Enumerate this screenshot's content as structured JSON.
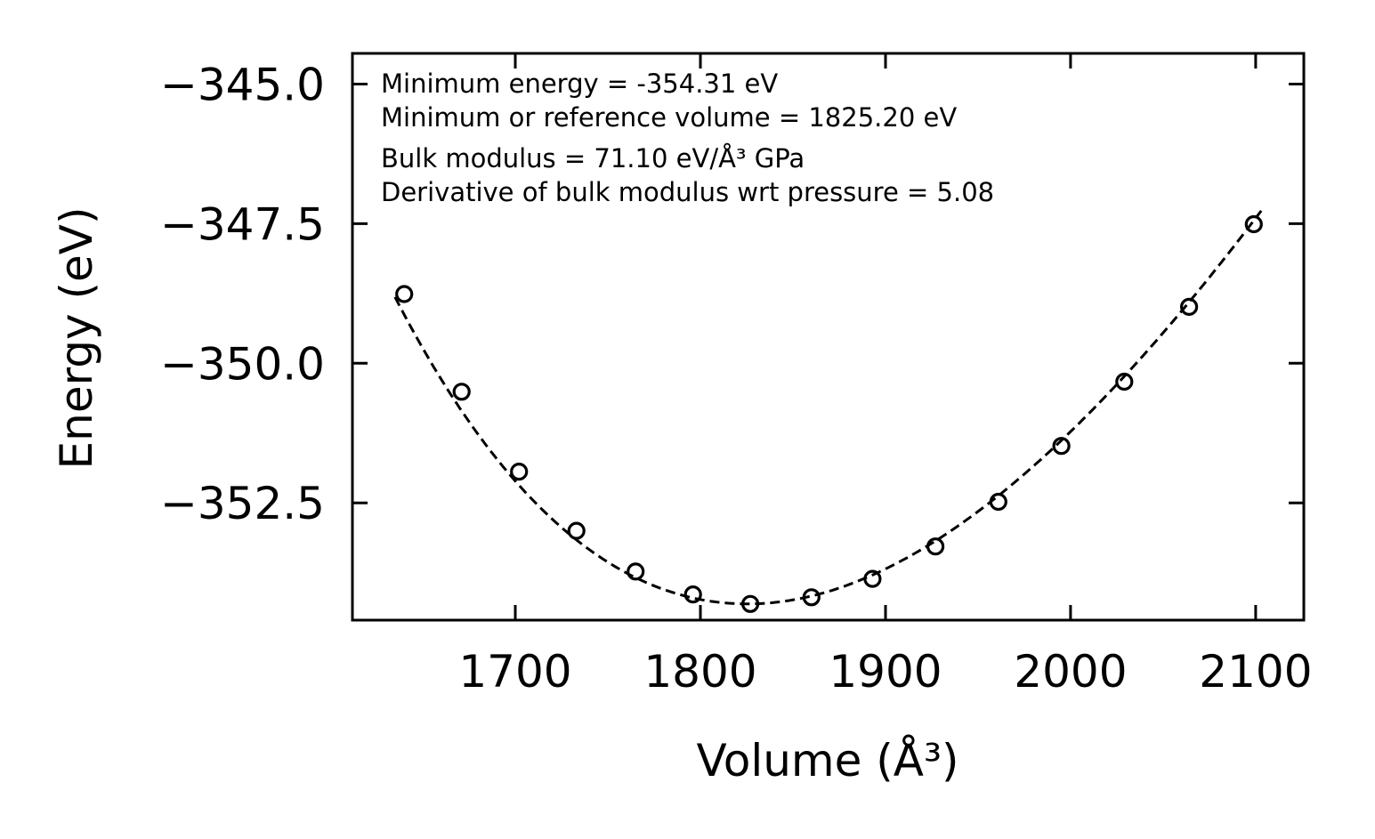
{
  "chart_data": {
    "type": "scatter",
    "title": "",
    "xlabel": "Volume (Å³)",
    "ylabel": "Energy (eV)",
    "xlim": [
      1612,
      2126
    ],
    "ylim": [
      -354.6,
      -344.45
    ],
    "xticks": [
      1700,
      1800,
      1900,
      2000,
      2100
    ],
    "xtick_labels": [
      "1700",
      "1800",
      "1900",
      "2000",
      "2100"
    ],
    "yticks": [
      -345.0,
      -347.5,
      -350.0,
      -352.5
    ],
    "ytick_labels": [
      "−345.0",
      "−347.5",
      "−350.0",
      "−352.5"
    ],
    "grid": false,
    "annotations": [
      "Minimum energy = -354.31 eV",
      "Minimum or reference volume = 1825.20 eV",
      "Bulk modulus = 71.10 eV/Å³ GPa",
      "Derivative of bulk modulus wrt pressure = 5.08"
    ],
    "series": [
      {
        "name": "data",
        "style": "open-circle",
        "color": "#000000",
        "x": [
          1640,
          1671,
          1702,
          1733,
          1765,
          1796,
          1827,
          1860,
          1893,
          1927,
          1961,
          1995,
          2029,
          2064,
          2099
        ],
        "y": [
          -348.76,
          -350.51,
          -351.94,
          -353.0,
          -353.73,
          -354.14,
          -354.31,
          -354.19,
          -353.86,
          -353.28,
          -352.48,
          -351.48,
          -350.33,
          -348.99,
          -347.51
        ]
      },
      {
        "name": "fit",
        "style": "dashed-line",
        "color": "#000000",
        "equation_params": {
          "E0": -354.31,
          "V0": 1825.2,
          "B0_eV_per_A3": 0.44378,
          "B0_prime": 5.08
        },
        "x_range": [
          1635,
          2103
        ]
      }
    ]
  }
}
